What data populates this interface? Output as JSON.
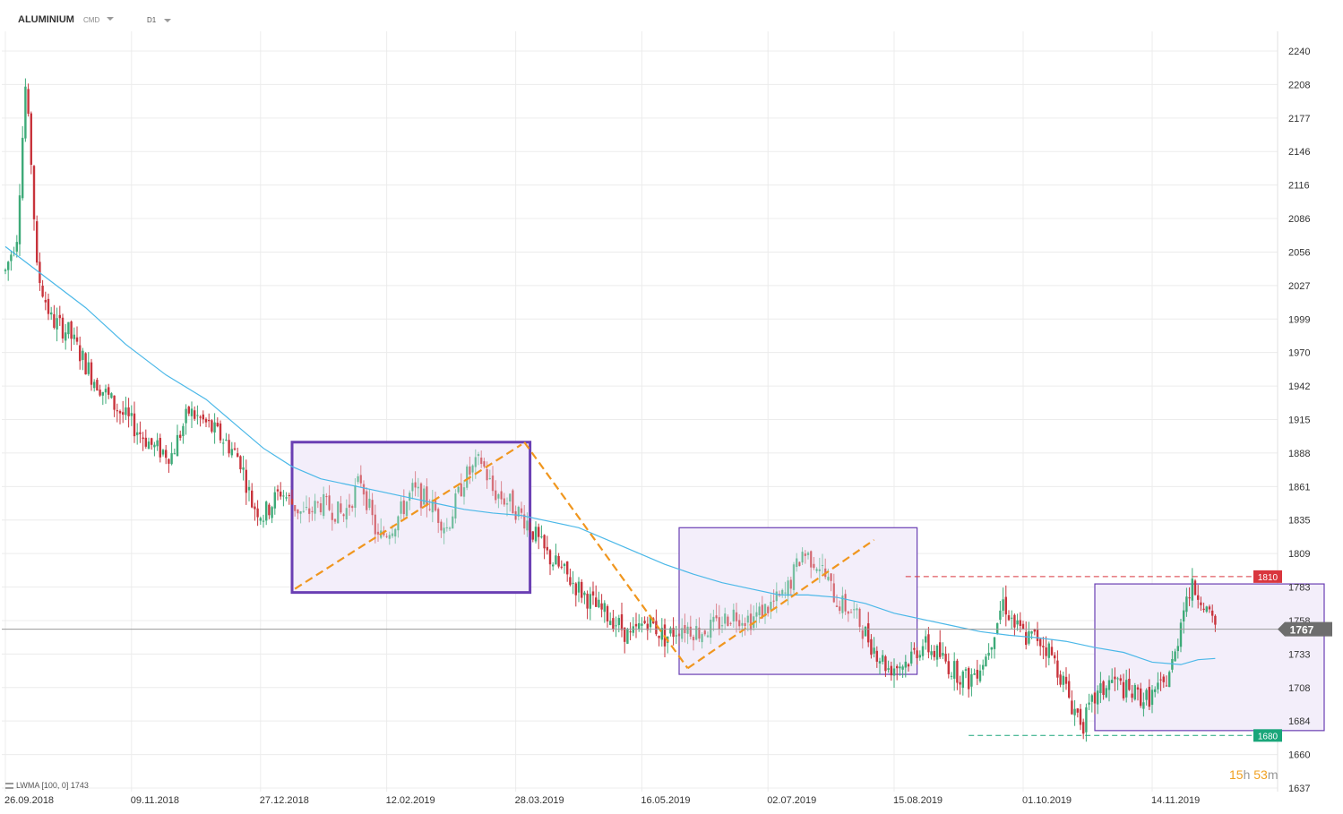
{
  "header": {
    "symbol": "ALUMINIUM",
    "source": "CMD",
    "timeframe": "D1"
  },
  "indicator": {
    "label": "LWMA [100,  0]",
    "value": "1743"
  },
  "countdown": {
    "hours": "15",
    "h_unit": "h",
    "minutes": "53",
    "m_unit": "m"
  },
  "colors": {
    "up": "#3daa78",
    "down": "#c8343c",
    "lwma": "#4bb8e8",
    "box_border": "#6a3fb3",
    "box_fill": "#f3eefa",
    "orange": "#f0961e",
    "resistance": "#d9363e",
    "support": "#1aa67a",
    "price_tag": "#6d6d6d"
  },
  "chart_data": {
    "type": "candlestick",
    "title": "ALUMINIUM",
    "y_ticks": [
      "2240",
      "2208",
      "2177",
      "2146",
      "2116",
      "2086",
      "2056",
      "2027",
      "1999",
      "1970",
      "1942",
      "1915",
      "1888",
      "1861",
      "1835",
      "1809",
      "1783",
      "1758",
      "1733",
      "1708",
      "1684",
      "1660",
      "1637"
    ],
    "x_ticks": [
      "26.09.2018",
      "09.11.2018",
      "27.12.2018",
      "12.02.2019",
      "28.03.2019",
      "16.05.2019",
      "02.07.2019",
      "15.08.2019",
      "01.10.2019",
      "14.11.2019"
    ],
    "ylim": [
      1637,
      2240
    ],
    "current_price": "1767",
    "resistance": {
      "label": "1810",
      "value": 1810
    },
    "support": {
      "label": "1680",
      "value": 1680
    },
    "lwma_period": 100,
    "anchors": [
      [
        0,
        2060
      ],
      [
        4,
        2090
      ],
      [
        7,
        2210
      ],
      [
        9,
        2150
      ],
      [
        11,
        2060
      ],
      [
        16,
        2020
      ],
      [
        22,
        2010
      ],
      [
        30,
        1975
      ],
      [
        38,
        1950
      ],
      [
        44,
        1935
      ],
      [
        52,
        1915
      ],
      [
        58,
        1910
      ],
      [
        64,
        1945
      ],
      [
        70,
        1935
      ],
      [
        77,
        1920
      ],
      [
        82,
        1905
      ],
      [
        86,
        1870
      ],
      [
        90,
        1860
      ],
      [
        96,
        1880
      ],
      [
        104,
        1860
      ],
      [
        110,
        1870
      ],
      [
        118,
        1860
      ],
      [
        124,
        1890
      ],
      [
        130,
        1840
      ],
      [
        136,
        1855
      ],
      [
        142,
        1880
      ],
      [
        148,
        1870
      ],
      [
        154,
        1850
      ],
      [
        160,
        1890
      ],
      [
        166,
        1905
      ],
      [
        170,
        1880
      ],
      [
        176,
        1870
      ],
      [
        182,
        1855
      ],
      [
        188,
        1830
      ],
      [
        194,
        1815
      ],
      [
        200,
        1800
      ],
      [
        206,
        1785
      ],
      [
        212,
        1775
      ],
      [
        218,
        1760
      ],
      [
        224,
        1775
      ],
      [
        230,
        1760
      ],
      [
        236,
        1770
      ],
      [
        242,
        1765
      ],
      [
        248,
        1770
      ],
      [
        254,
        1780
      ],
      [
        260,
        1775
      ],
      [
        266,
        1785
      ],
      [
        272,
        1795
      ],
      [
        278,
        1830
      ],
      [
        284,
        1820
      ],
      [
        290,
        1790
      ],
      [
        296,
        1780
      ],
      [
        302,
        1755
      ],
      [
        308,
        1735
      ],
      [
        314,
        1740
      ],
      [
        320,
        1755
      ],
      [
        326,
        1745
      ],
      [
        330,
        1735
      ],
      [
        336,
        1725
      ],
      [
        342,
        1745
      ],
      [
        348,
        1790
      ],
      [
        352,
        1770
      ],
      [
        356,
        1760
      ],
      [
        360,
        1760
      ],
      [
        364,
        1750
      ],
      [
        368,
        1730
      ],
      [
        372,
        1705
      ],
      [
        376,
        1690
      ],
      [
        380,
        1710
      ],
      [
        386,
        1725
      ],
      [
        392,
        1715
      ],
      [
        398,
        1710
      ],
      [
        404,
        1720
      ],
      [
        408,
        1745
      ],
      [
        411,
        1790
      ],
      [
        414,
        1800
      ],
      [
        417,
        1795
      ],
      [
        420,
        1775
      ],
      [
        422,
        1770
      ]
    ],
    "lwma": [
      [
        0,
        2080
      ],
      [
        14,
        2055
      ],
      [
        28,
        2030
      ],
      [
        42,
        2000
      ],
      [
        56,
        1975
      ],
      [
        70,
        1955
      ],
      [
        80,
        1935
      ],
      [
        90,
        1915
      ],
      [
        100,
        1900
      ],
      [
        110,
        1890
      ],
      [
        120,
        1885
      ],
      [
        130,
        1880
      ],
      [
        140,
        1875
      ],
      [
        150,
        1870
      ],
      [
        160,
        1865
      ],
      [
        170,
        1862
      ],
      [
        180,
        1860
      ],
      [
        190,
        1855
      ],
      [
        200,
        1850
      ],
      [
        210,
        1840
      ],
      [
        220,
        1830
      ],
      [
        230,
        1820
      ],
      [
        240,
        1812
      ],
      [
        250,
        1805
      ],
      [
        260,
        1800
      ],
      [
        270,
        1795
      ],
      [
        280,
        1795
      ],
      [
        290,
        1793
      ],
      [
        300,
        1788
      ],
      [
        310,
        1780
      ],
      [
        320,
        1775
      ],
      [
        330,
        1770
      ],
      [
        340,
        1765
      ],
      [
        350,
        1762
      ],
      [
        360,
        1760
      ],
      [
        370,
        1757
      ],
      [
        380,
        1752
      ],
      [
        390,
        1748
      ],
      [
        400,
        1740
      ],
      [
        410,
        1738
      ],
      [
        416,
        1742
      ],
      [
        422,
        1743
      ]
    ],
    "boxes": [
      {
        "i0": 100,
        "i1": 183,
        "hi": 1920,
        "lo": 1797
      },
      {
        "i0": 235,
        "i1": 318,
        "hi": 1850,
        "lo": 1730
      },
      {
        "i0": 380,
        "i1": 460,
        "hi": 1804,
        "lo": 1684
      }
    ],
    "orange_lines": [
      {
        "points": [
          [
            101,
            1800
          ],
          [
            180,
            1918
          ]
        ],
        "dashed": true
      },
      {
        "points": [
          [
            181,
            1920
          ],
          [
            238,
            1735
          ]
        ],
        "dashed": true
      },
      {
        "points": [
          [
            238,
            1735
          ],
          [
            303,
            1840
          ]
        ],
        "dashed": true
      }
    ]
  }
}
